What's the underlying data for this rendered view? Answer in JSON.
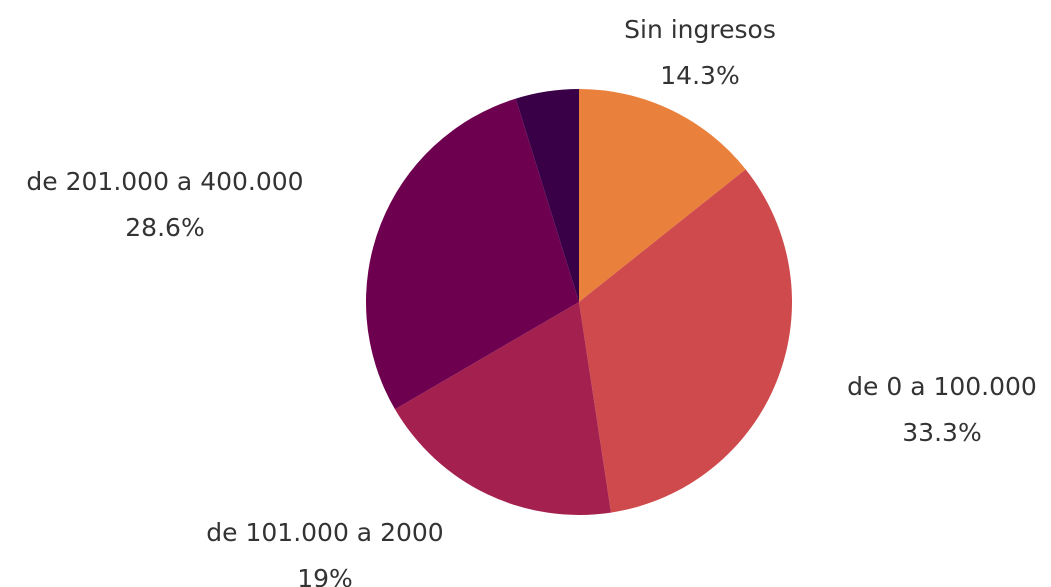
{
  "chart_data": {
    "type": "pie",
    "title": "",
    "start_angle_deg": 0,
    "direction": "clockwise",
    "slices": [
      {
        "label": "Sin ingresos",
        "value": 14.3,
        "value_label": "14.3%",
        "color": "#E9803B"
      },
      {
        "label": "de 0 a 100.000",
        "value": 33.3,
        "value_label": "33.3%",
        "color": "#CF4A4C"
      },
      {
        "label": "de 101.000 a 2000",
        "value": 19,
        "value_label": "19%",
        "color": "#A4204E"
      },
      {
        "label": "de 201.000 a 400.000",
        "value": 28.6,
        "value_label": "28.6%",
        "color": "#6E0050"
      },
      {
        "label": "",
        "value": 4.8,
        "value_label": "",
        "color": "#3A0047"
      }
    ]
  }
}
